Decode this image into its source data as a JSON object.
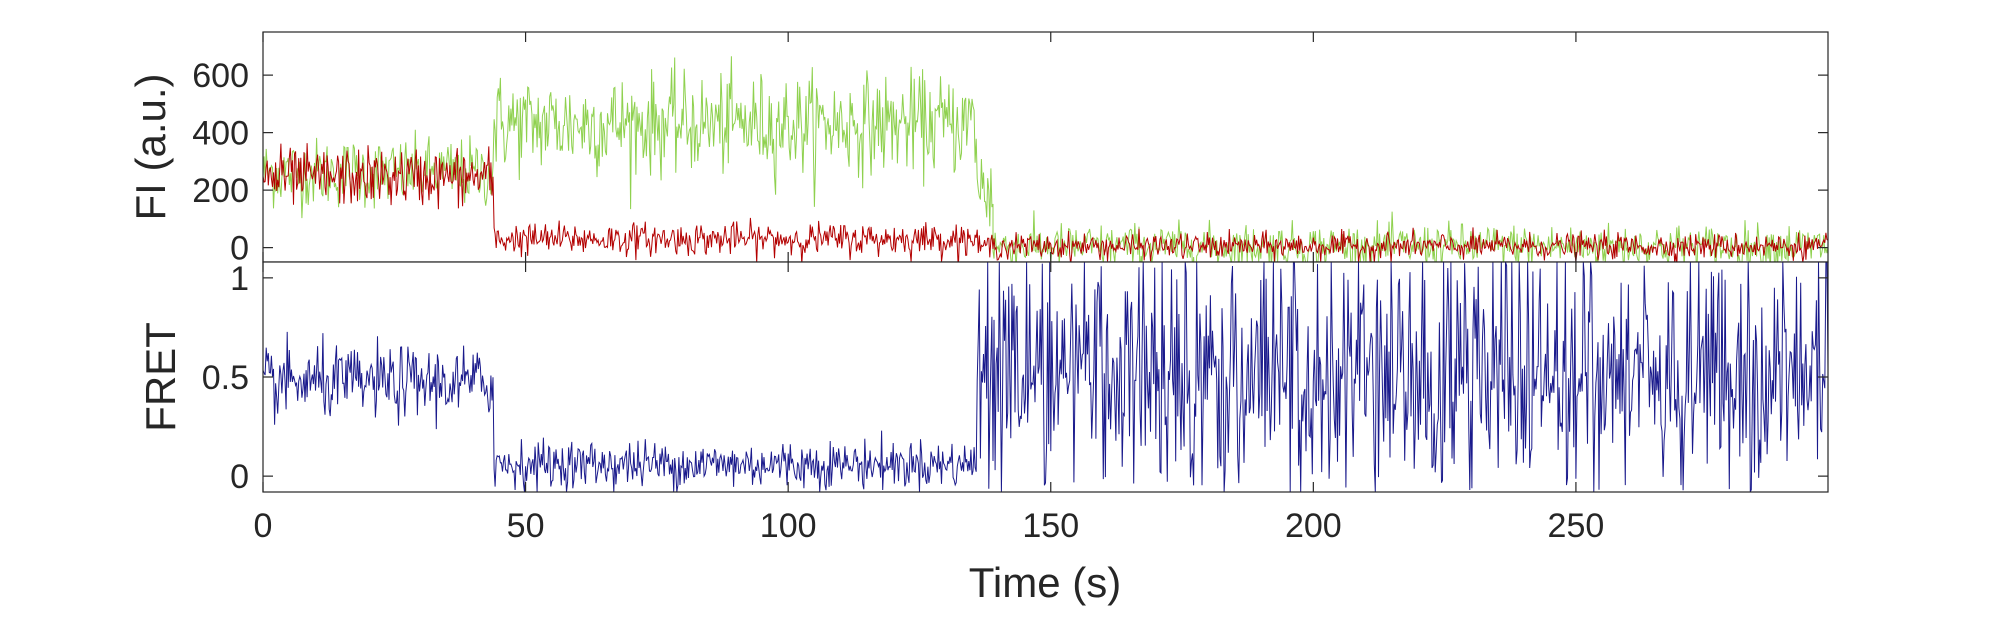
{
  "chart_data": [
    {
      "type": "line",
      "panel": "top",
      "xlabel": "",
      "ylabel": "FI (a.u.)",
      "xlim": [
        0,
        298
      ],
      "ylim": [
        -50,
        750
      ],
      "xticks": [
        0,
        50,
        100,
        150,
        200,
        250
      ],
      "yticks": [
        0,
        200,
        400,
        600
      ],
      "ytick_labels": [
        "0",
        "200",
        "400",
        "600"
      ],
      "grid": false,
      "legend": "none",
      "series": [
        {
          "color": "#8fd14f",
          "segments": [
            {
              "x": [
                0,
                44
              ],
              "mean": 260,
              "noise": 60
            },
            {
              "x": [
                44,
                136
              ],
              "mean": 430,
              "noise": 85
            },
            {
              "x": [
                136,
                139
              ],
              "mean": 200,
              "noise": 90
            },
            {
              "x": [
                139,
                298
              ],
              "mean": 5,
              "noise": 38
            }
          ]
        },
        {
          "color": "#b30000",
          "segments": [
            {
              "x": [
                0,
                44
              ],
              "mean": 245,
              "noise": 50
            },
            {
              "x": [
                44,
                136
              ],
              "mean": 30,
              "noise": 28
            },
            {
              "x": [
                136,
                298
              ],
              "mean": 5,
              "noise": 22
            }
          ]
        }
      ]
    },
    {
      "type": "line",
      "panel": "bottom",
      "xlabel": "Time (s)",
      "ylabel": "FRET",
      "xlim": [
        0,
        298
      ],
      "ylim": [
        -0.08,
        1.08
      ],
      "xticks": [
        0,
        50,
        100,
        150,
        200,
        250
      ],
      "xtick_labels": [
        "0",
        "50",
        "100",
        "150",
        "200",
        "250"
      ],
      "yticks": [
        0,
        0.5,
        1
      ],
      "ytick_labels": [
        "0",
        "0.5",
        "1"
      ],
      "grid": false,
      "legend": "none",
      "series": [
        {
          "color": "#1a1a8c",
          "segments": [
            {
              "x": [
                0,
                44
              ],
              "mean": 0.47,
              "noise": 0.09
            },
            {
              "x": [
                44,
                136
              ],
              "mean": 0.06,
              "noise": 0.06
            },
            {
              "x": [
                136,
                298
              ],
              "mean": 0.5,
              "noise": 0.55
            }
          ]
        }
      ]
    }
  ]
}
